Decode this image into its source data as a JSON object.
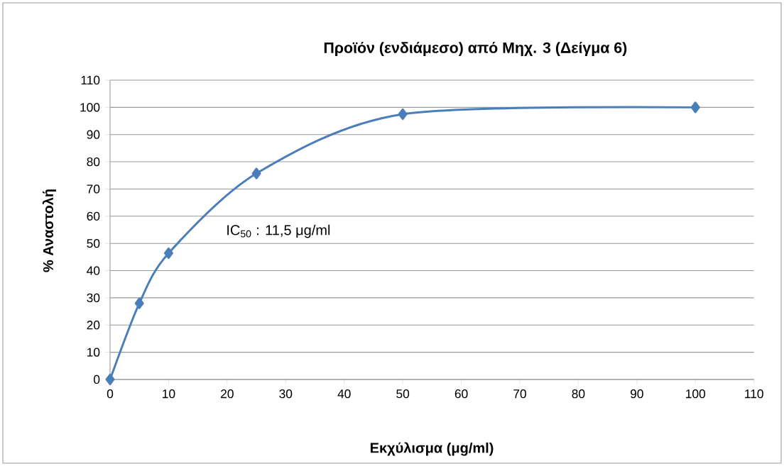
{
  "chart_data": {
    "type": "line",
    "title": "Προϊόν  (ενδιάμεσο)  από Μηχ. 3 (Δείγμα 6)",
    "xlabel": "Εκχύλισμα (μg/ml)",
    "ylabel": "% Αναστολή",
    "annotations": [
      "IC$_{50}$ : 11,5 μg/ml"
    ],
    "x": [
      0,
      5,
      10,
      25,
      50,
      100
    ],
    "series": [
      {
        "color": "#4a7ebb",
        "values": [
          0,
          28,
          46.4,
          75.7,
          97.5,
          100
        ]
      }
    ],
    "xlim": [
      0,
      110
    ],
    "xticks": [
      0,
      10,
      20,
      30,
      40,
      50,
      60,
      70,
      80,
      90,
      100,
      110
    ],
    "ylim": [
      0,
      110
    ],
    "yticks": [
      0,
      10,
      20,
      30,
      40,
      50,
      60,
      70,
      80,
      90,
      100,
      110
    ],
    "grid": "y",
    "marker": "diamond",
    "line_style": "solid"
  }
}
